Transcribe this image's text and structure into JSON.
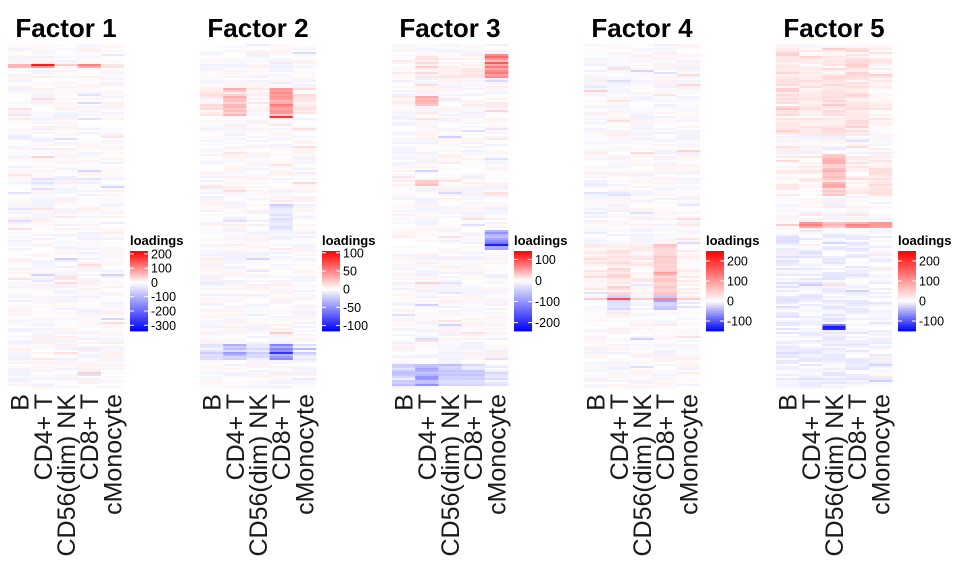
{
  "chart_data": {
    "type": "heatmap",
    "x_categories": [
      "B",
      "CD4+ T",
      "CD56(dim) NK",
      "CD8+ T",
      "cMonocyte"
    ],
    "color_scale": {
      "low": "#0000ff",
      "mid": "#ffffff",
      "high": "#ff0000",
      "midpoint": 0
    },
    "legend_title": "loadings",
    "facets": [
      {
        "title": "Factor 1",
        "range": [
          -340,
          220
        ],
        "legend_ticks": [
          200,
          100,
          0,
          -100,
          -200,
          -300
        ],
        "legend_labels": [
          "200",
          "100",
          "0",
          "-100",
          "-200",
          "-300"
        ]
      },
      {
        "title": "Factor 2",
        "range": [
          -115,
          105
        ],
        "legend_ticks": [
          100,
          50,
          0,
          -50,
          -100
        ],
        "legend_labels": [
          "100",
          "50",
          "0",
          "-50",
          "-100"
        ]
      },
      {
        "title": "Factor 3",
        "range": [
          -240,
          140
        ],
        "legend_ticks": [
          100,
          0,
          -100,
          -200
        ],
        "legend_labels": [
          "100",
          "0",
          "-100",
          "-200"
        ]
      },
      {
        "title": "Factor 4",
        "range": [
          -150,
          250
        ],
        "legend_ticks": [
          200,
          100,
          0,
          -100
        ],
        "legend_labels": [
          "200",
          "100",
          "0",
          "-100"
        ]
      },
      {
        "title": "Factor 5",
        "range": [
          -150,
          250
        ],
        "legend_ticks": [
          200,
          100,
          0,
          -100
        ],
        "legend_labels": [
          "200",
          "100",
          "0",
          "-100"
        ]
      }
    ]
  }
}
